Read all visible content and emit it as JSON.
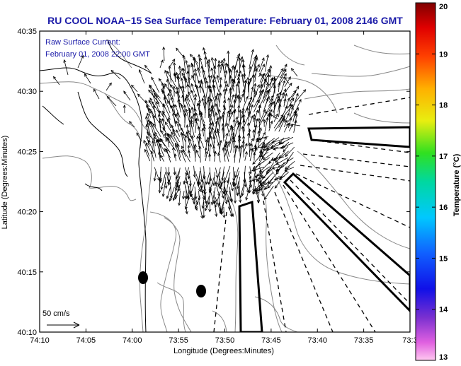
{
  "chart_data": {
    "type": "map",
    "title": "RU COOL  NOAA−15  Sea Surface Temperature:  February 01, 2008 2146 GMT",
    "subtitle_lines": [
      "Raw Surface Current:",
      "February 01, 2008 22:00 GMT"
    ],
    "xlabel": "Longitude (Degrees:Minutes)",
    "ylabel": "Latitude (Degrees:Minutes)",
    "x_ticks": [
      "74:10",
      "74:05",
      "74:00",
      "73:55",
      "73:50",
      "73:45",
      "73:40",
      "73:35",
      "73:3"
    ],
    "y_ticks": [
      "40:35",
      "40:30",
      "40:25",
      "40:20",
      "40:15",
      "40:10"
    ],
    "xlim_minutes_west": [
      10,
      -30
    ],
    "ylim_minutes_north": [
      10,
      35
    ],
    "scale_label": "50 cm/s",
    "colorbar": {
      "label": "Temperature (°C)",
      "ticks": [
        "20",
        "19",
        "18",
        "17",
        "16",
        "15",
        "14",
        "13"
      ],
      "min": 13,
      "max": 20
    },
    "colors": {
      "title": "#1a1aa8",
      "annotation": "#1a1aa8",
      "contour": "#888888",
      "vector": "#000000",
      "frame": "#000000"
    }
  }
}
